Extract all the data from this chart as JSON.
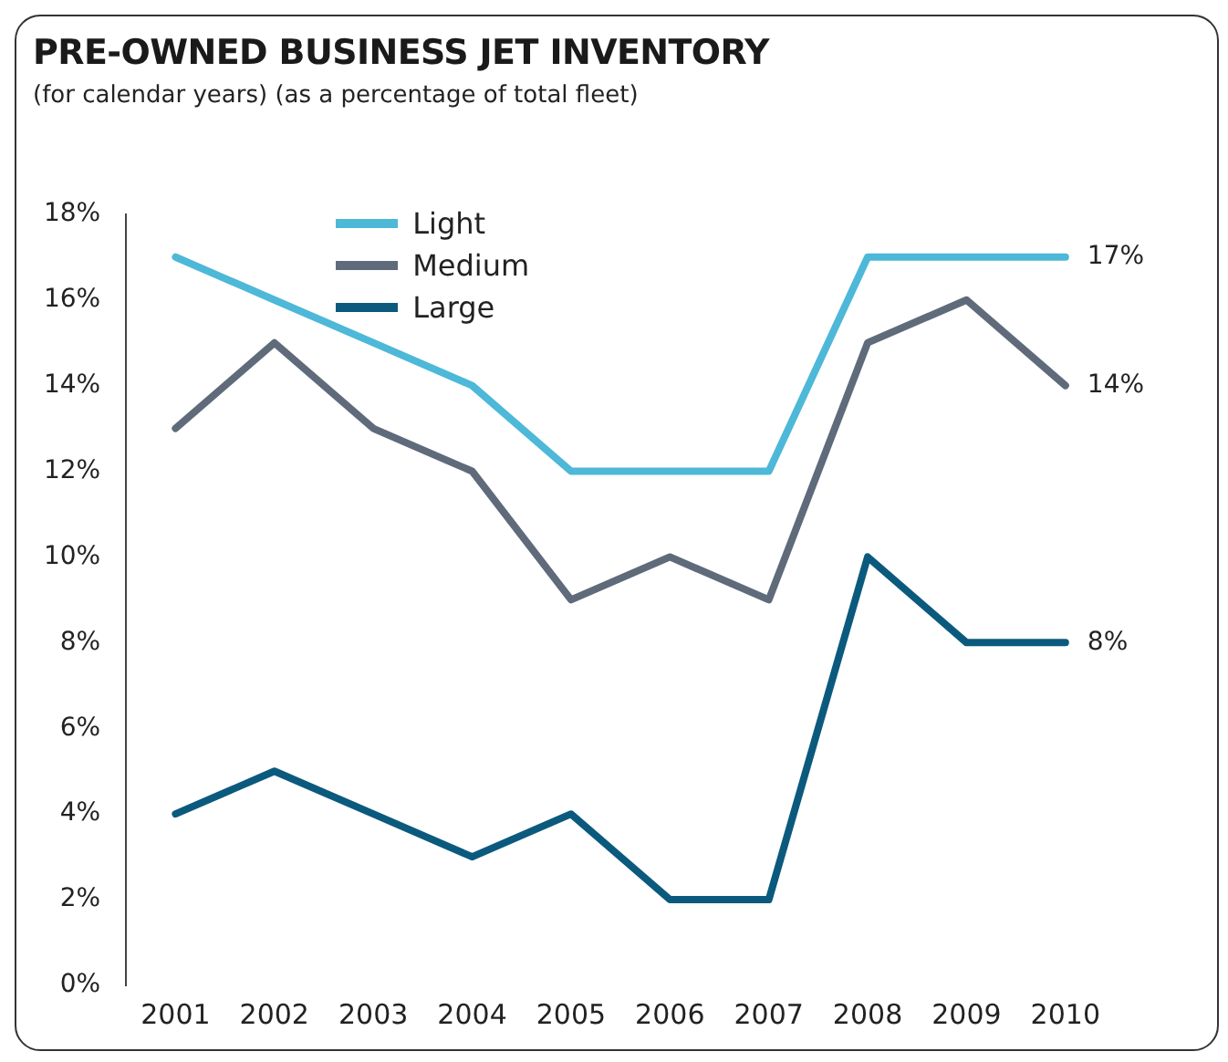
{
  "chart_data": {
    "type": "line",
    "title": "PRE-OWNED BUSINESS JET INVENTORY",
    "subtitle": "(for calendar years) (as a percentage of total fleet)",
    "categories": [
      "2001",
      "2002",
      "2003",
      "2004",
      "2005",
      "2006",
      "2007",
      "2008",
      "2009",
      "2010"
    ],
    "series": [
      {
        "name": "Light",
        "color": "#4db8d8",
        "values": [
          17,
          16,
          15,
          14,
          12,
          12,
          12,
          17,
          17,
          17
        ],
        "value_labels": [
          null,
          null,
          null,
          null,
          null,
          null,
          null,
          null,
          null,
          "17%"
        ]
      },
      {
        "name": "Medium",
        "color": "#5f6b7a",
        "values": [
          13,
          15,
          13,
          12,
          9,
          10,
          9,
          15,
          16,
          14
        ],
        "value_labels": [
          null,
          null,
          null,
          null,
          null,
          null,
          null,
          null,
          null,
          "14%"
        ]
      },
      {
        "name": "Large",
        "color": "#0b5a7e",
        "values": [
          4,
          5,
          4,
          3,
          4,
          2,
          2,
          10,
          8,
          8
        ],
        "value_labels": [
          null,
          null,
          null,
          null,
          null,
          null,
          null,
          null,
          null,
          "8%"
        ]
      }
    ],
    "ylim": [
      0,
      18
    ],
    "yticks": [
      {
        "value": 0,
        "label": "0%"
      },
      {
        "value": 2,
        "label": "2%"
      },
      {
        "value": 4,
        "label": "4%"
      },
      {
        "value": 6,
        "label": "6%"
      },
      {
        "value": 8,
        "label": "8%"
      },
      {
        "value": 10,
        "label": "10%"
      },
      {
        "value": 12,
        "label": "12%"
      },
      {
        "value": 14,
        "label": "14%"
      },
      {
        "value": 16,
        "label": "16%"
      },
      {
        "value": 18,
        "label": "18%"
      }
    ],
    "grid": false,
    "legend": "top left",
    "marker": "none",
    "line_style": "solid"
  }
}
